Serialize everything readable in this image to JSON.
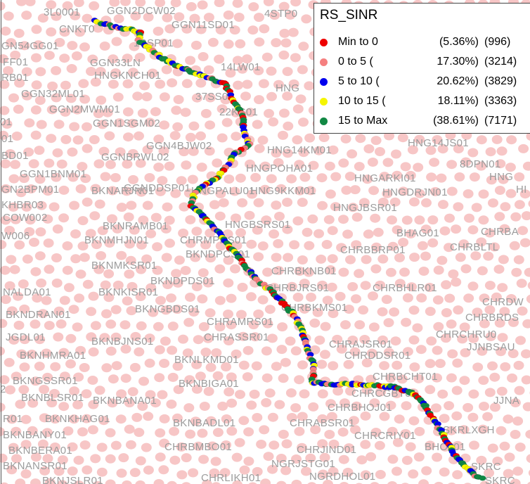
{
  "legend": {
    "title": "RS_SINR",
    "entries": [
      {
        "range": "Min to 0",
        "pct": "(5.36%)",
        "count": "(996)",
        "color": "#ee0000"
      },
      {
        "range": "0 to 5 (",
        "pct": "17.30%)",
        "count": "(3214)",
        "color": "#f58080"
      },
      {
        "range": "5 to 10 (",
        "pct": "20.62%)",
        "count": "(3829)",
        "color": "#0000ee"
      },
      {
        "range": "10 to 15 (",
        "pct": "18.11%)",
        "count": "(3363)",
        "color": "#f5f500"
      },
      {
        "range": "15 to Max",
        "pct": "(38.61%)",
        "count": "(7171)",
        "color": "#118844"
      }
    ]
  },
  "colors": {
    "site_dot": "#f7c6c6",
    "site_label": "#9c9c9c"
  },
  "sites": [
    "3L0001",
    "GGN2DCW02",
    "4STP0",
    "CNKT0",
    "GGN11SD01",
    "GN54GG01",
    "1SSP01",
    "FF01",
    "GGN33LN",
    "RB01",
    "HNGKNCH01",
    "14LW01",
    "HNG",
    "GGN32ML01",
    "37SS01",
    "GGN2MWM01",
    "22KS01",
    "01",
    "GGN1SGM02",
    "01",
    "GGN4BJW02",
    "HNG14KM01",
    "HNG14JS01",
    "BD01",
    "GGNBRWL02",
    "HNGPOHA01",
    "8DPN01",
    "GGN1BNM01",
    "HNGARKI01",
    "HNG",
    "GN2BPM01",
    "GGNDDSP01",
    "HNG9KKM01",
    "HNGDRJN01",
    "HI",
    "KHBR03",
    "HNGJBSR01",
    "BKNARJN01",
    "HNGPALU01",
    "COW002",
    "BKNRAMB01",
    "HNGBSRS01",
    "CHRBA",
    "BHAG01",
    "W006",
    "BKNMHJN01",
    "CHRMPRS01",
    "CHRBLTL",
    "BKNDPCS01",
    "CHRBBRP01",
    "BKNMKSR01",
    "CHRBKNB01",
    "BKNDPDS01",
    "NALDA01",
    "BKNKISR01",
    "CHRBJRS01",
    "CHRBHLR01",
    "CHRDW",
    "BKNGBDS01",
    "CHRBKMS01",
    "BKNDRAN01",
    "CHRBRDS",
    "CHRAMRS01",
    "CHRCHRU0",
    "JGDL01",
    "BKNBJNS01",
    "CHRASSR01",
    "CHRAJSR01",
    "JJNBSAU",
    "BKNHMRA01",
    "BKNLKMD01",
    "CHRDDSR01",
    "BKNGSSR01",
    "CHRBCHT01",
    "2",
    "BKNBIGA01",
    "BKNBLSR01",
    "CHRCGBT01",
    "JJNA",
    "BKNBANA01",
    "CHRBHOJ01",
    "R01",
    "BKNKHAG01",
    "BKNBADL01",
    "CHRABSR01",
    "SKRLXGH",
    "BKNBANY01",
    "CHRCRIY01",
    "BKNBERA01",
    "CHRBMBO01",
    "CHRJIND01",
    "BHOJ01",
    "BKNANSR01",
    "NGRJSTG01",
    "SKRC",
    "BKNJSLR01",
    "CHRLIKH01",
    "NGRDHOL01",
    "SKRC"
  ]
}
